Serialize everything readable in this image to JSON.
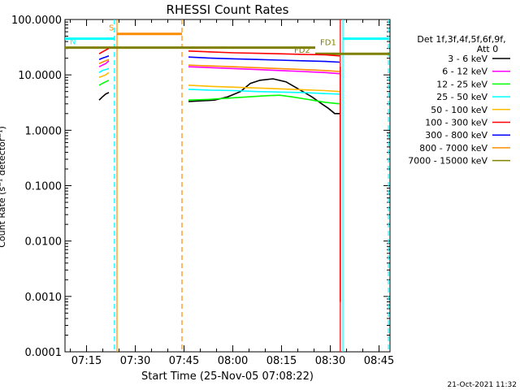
{
  "chart_data": {
    "type": "line",
    "title": "RHESSI Count Rates",
    "xlabel": "Start Time (25-Nov-05 07:08:22)",
    "ylabel": "Count Rate (s⁻¹ detector⁻¹)",
    "footer": "21-Oct-2021 11:32",
    "x_units": "minutes after 07:08:22",
    "xlim": [
      0,
      100
    ],
    "ylim": [
      0.0001,
      100
    ],
    "log_y": true,
    "grid": false,
    "legend_position": "right",
    "x_ticks": [
      {
        "t": 6.63,
        "label": "07:15"
      },
      {
        "t": 21.63,
        "label": "07:30"
      },
      {
        "t": 36.63,
        "label": "07:45"
      },
      {
        "t": 51.63,
        "label": "08:00"
      },
      {
        "t": 66.63,
        "label": "08:15"
      },
      {
        "t": 81.63,
        "label": "08:30"
      },
      {
        "t": 96.63,
        "label": "08:45"
      }
    ],
    "y_ticks": [
      {
        "v": 100,
        "label": "100.0000"
      },
      {
        "v": 10,
        "label": "10.0000"
      },
      {
        "v": 1,
        "label": "1.0000"
      },
      {
        "v": 0.1,
        "label": "0.1000"
      },
      {
        "v": 0.01,
        "label": "0.0100"
      },
      {
        "v": 0.001,
        "label": "0.0010"
      },
      {
        "v": 0.0001,
        "label": "0.0001"
      }
    ],
    "legend": {
      "header": [
        "Det 1f,3f,4f,5f,6f,9f,",
        "Att 0"
      ]
    },
    "series": [
      {
        "name": "3 - 6 keV",
        "color": "#000000",
        "segments": [
          {
            "x": [
              10.5,
              11.5,
              12.5,
              13.5
            ],
            "y": [
              3.5,
              4.0,
              4.5,
              4.8
            ]
          },
          {
            "x": [
              38,
              42,
              46,
              50,
              54,
              57,
              60,
              64,
              68,
              72,
              76,
              79,
              81,
              83,
              84.5
            ],
            "y": [
              3.3,
              3.4,
              3.5,
              4.0,
              5.0,
              7.0,
              8.0,
              8.5,
              7.5,
              5.5,
              4.0,
              3.0,
              2.5,
              2.0,
              2.0
            ]
          }
        ]
      },
      {
        "name": "6 - 12 keV",
        "color": "#ff00ff",
        "segments": [
          {
            "x": [
              10.5,
              11.5,
              12.5,
              13.5
            ],
            "y": [
              14,
              15,
              16,
              18
            ]
          },
          {
            "x": [
              38,
              45,
              52,
              59,
              66,
              73,
              80,
              84.5
            ],
            "y": [
              14,
              13.5,
              13,
              12.5,
              12,
              11.5,
              11,
              10.5
            ]
          }
        ]
      },
      {
        "name": "12 - 25 keV",
        "color": "#00ff00",
        "segments": [
          {
            "x": [
              10.5,
              11.5,
              12.5,
              13.5
            ],
            "y": [
              6.5,
              7.0,
              7.5,
              8.0
            ]
          },
          {
            "x": [
              38,
              44,
              50,
              56,
              62,
              66,
              70,
              76,
              80,
              84.5
            ],
            "y": [
              3.5,
              3.6,
              3.8,
              4.0,
              4.2,
              4.3,
              4.0,
              3.5,
              3.2,
              3.0
            ]
          }
        ]
      },
      {
        "name": "25 - 50 keV",
        "color": "#00ffff",
        "segments": [
          {
            "x": [
              10.5,
              11.5,
              12.5,
              13.5
            ],
            "y": [
              11,
              12,
              12.5,
              13
            ]
          },
          {
            "x": [
              38,
              45,
              52,
              59,
              66,
              73,
              80,
              84.5
            ],
            "y": [
              5.5,
              5.3,
              5.2,
              5.0,
              4.9,
              4.8,
              4.6,
              4.5
            ]
          }
        ]
      },
      {
        "name": "50 - 100 keV",
        "color": "#ffbb00",
        "segments": [
          {
            "x": [
              10.5,
              11.5,
              12.5,
              13.5
            ],
            "y": [
              9,
              9.5,
              10,
              11
            ]
          },
          {
            "x": [
              38,
              45,
              52,
              59,
              66,
              73,
              80,
              84.5
            ],
            "y": [
              6.5,
              6.2,
              6.0,
              5.8,
              5.6,
              5.4,
              5.2,
              5.0
            ]
          }
        ]
      },
      {
        "name": "100 - 300 keV",
        "color": "#ff0000",
        "segments": [
          {
            "x": [
              10.5,
              11.5,
              12.5,
              13.5
            ],
            "y": [
              24,
              26,
              28,
              30
            ]
          },
          {
            "x": [
              38,
              45,
              52,
              59,
              66,
              73,
              80,
              84.5
            ],
            "y": [
              27,
              26,
              25,
              24.5,
              24,
              23.5,
              23,
              22
            ]
          },
          {
            "x": [
              84.7,
              84.7
            ],
            "y": [
              14,
              0.0008
            ]
          }
        ]
      },
      {
        "name": "300 - 800 keV",
        "color": "#0000ff",
        "segments": [
          {
            "x": [
              10.5,
              11.5,
              12.5,
              13.5
            ],
            "y": [
              19,
              20,
              21,
              22
            ]
          },
          {
            "x": [
              38,
              45,
              52,
              59,
              66,
              73,
              80,
              84.5
            ],
            "y": [
              21,
              20,
              19.5,
              19,
              18.5,
              18,
              17.5,
              17
            ]
          }
        ]
      },
      {
        "name": "800 - 7000 keV",
        "color": "#ff8c00",
        "segments": [
          {
            "x": [
              10.5,
              11.5,
              12.5,
              13.5
            ],
            "y": [
              16,
              17,
              18,
              19
            ]
          },
          {
            "x": [
              38,
              45,
              52,
              59,
              66,
              73,
              80,
              84.5
            ],
            "y": [
              15,
              14.5,
              14,
              13.5,
              13,
              12.5,
              12,
              11.5
            ]
          }
        ]
      },
      {
        "name": "7000 - 15000 keV",
        "color": "#808000",
        "segments": []
      }
    ],
    "annotations": {
      "dashed_verticals": [
        {
          "t": 15.2,
          "color": "#00ffff"
        },
        {
          "t": 36.0,
          "color": "#ff8c00"
        },
        {
          "t": 99.5,
          "color": "#00ffff"
        }
      ],
      "solid_verticals": [
        {
          "t": 16.0,
          "color": "#ff8c00"
        },
        {
          "t": 84.7,
          "color": "#ff0000"
        },
        {
          "t": 85.5,
          "color": "#00ffff"
        }
      ],
      "bars": [
        {
          "label": "S",
          "color": "#ff8c00",
          "t0": 16.0,
          "t1": 36.0,
          "y": 55
        },
        {
          "label": "N",
          "color": "#00ffff",
          "t0": 0,
          "t1": 15.2,
          "y": 45
        },
        {
          "label": "N",
          "color": "#00ffff",
          "t0": 85.5,
          "t1": 99.5,
          "y": 45
        },
        {
          "label": "FD1",
          "color": "#808000",
          "t0": 0,
          "t1": 77,
          "y": 31
        },
        {
          "label": "FD2",
          "color": "#808000",
          "t0": 77,
          "t1": 100,
          "y": 24
        }
      ]
    }
  }
}
